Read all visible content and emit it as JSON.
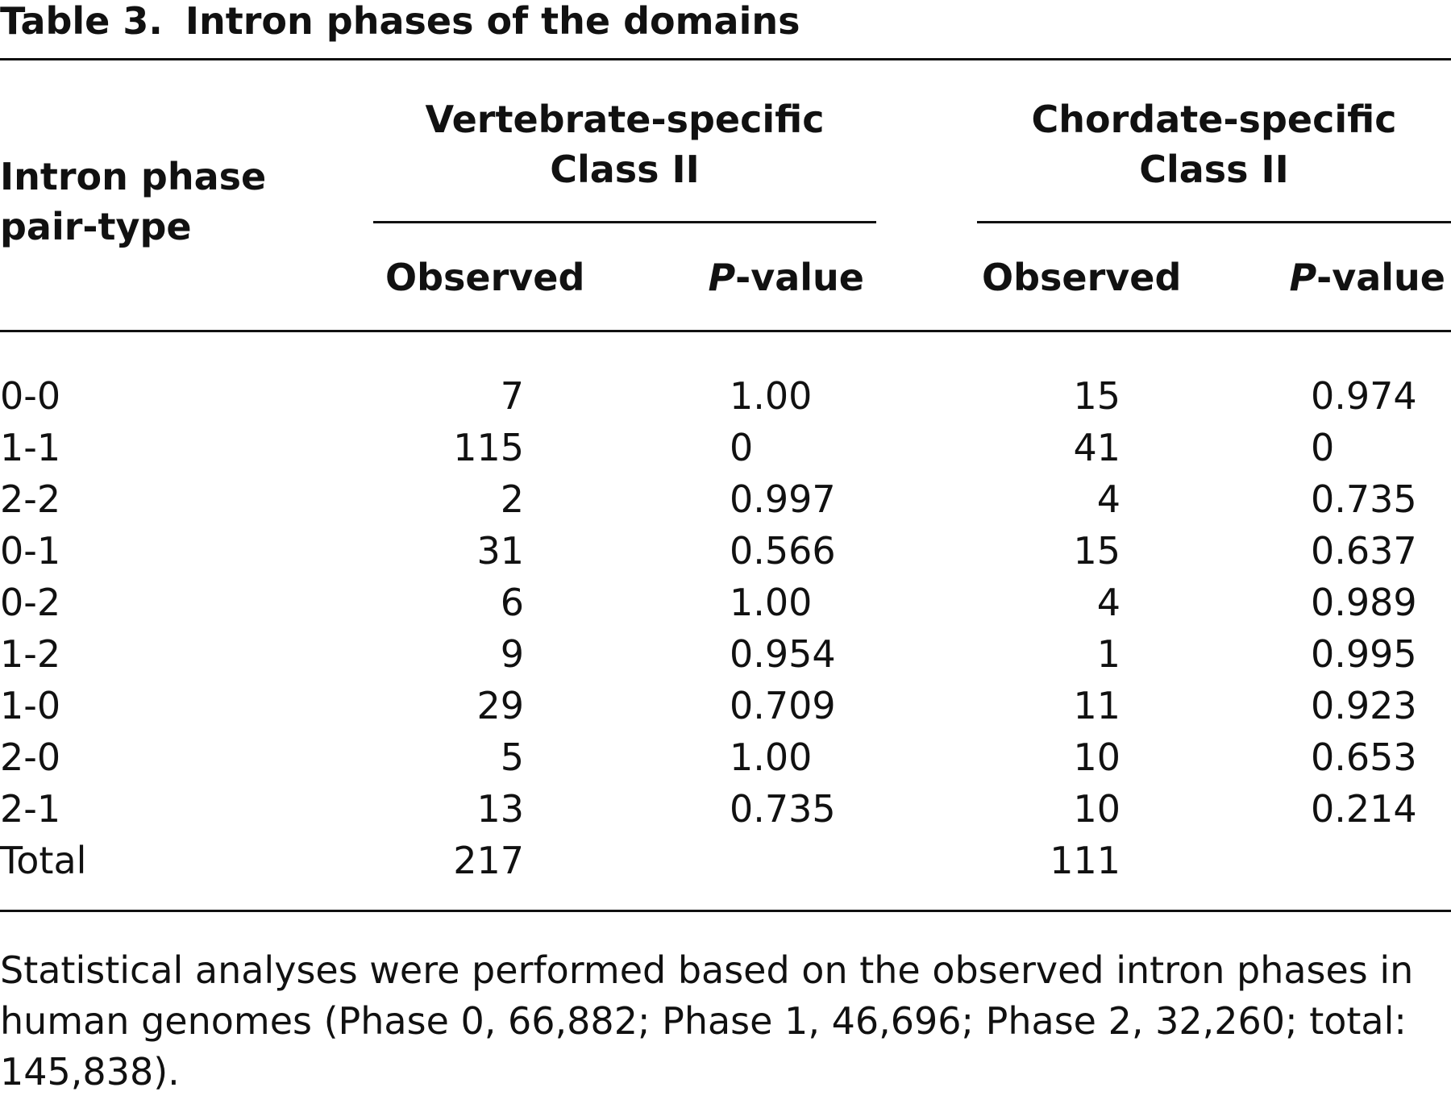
{
  "table": {
    "label": "Table 3.",
    "title": "Intron phases of the domains",
    "stub_header": [
      "Intron phase",
      "pair-type"
    ],
    "group1": {
      "title": [
        "Vertebrate-specific",
        "Class II"
      ],
      "col_observed": "Observed",
      "col_pvalue_italic": "P",
      "col_pvalue_rest": "-value"
    },
    "group2": {
      "title": [
        "Chordate-specific",
        "Class II"
      ],
      "col_observed": "Observed",
      "col_pvalue_italic": "P",
      "col_pvalue_rest": "-value"
    },
    "rows": [
      {
        "type": "0-0",
        "v_obs": "7",
        "v_p": "1.00",
        "c_obs": "15",
        "c_p": "0.974"
      },
      {
        "type": "1-1",
        "v_obs": "115",
        "v_p": "0",
        "c_obs": "41",
        "c_p": "0"
      },
      {
        "type": "2-2",
        "v_obs": "2",
        "v_p": "0.997",
        "c_obs": "4",
        "c_p": "0.735"
      },
      {
        "type": "0-1",
        "v_obs": "31",
        "v_p": "0.566",
        "c_obs": "15",
        "c_p": "0.637"
      },
      {
        "type": "0-2",
        "v_obs": "6",
        "v_p": "1.00",
        "c_obs": "4",
        "c_p": "0.989"
      },
      {
        "type": "1-2",
        "v_obs": "9",
        "v_p": "0.954",
        "c_obs": "1",
        "c_p": "0.995"
      },
      {
        "type": "1-0",
        "v_obs": "29",
        "v_p": "0.709",
        "c_obs": "11",
        "c_p": "0.923"
      },
      {
        "type": "2-0",
        "v_obs": "5",
        "v_p": "1.00",
        "c_obs": "10",
        "c_p": "0.653"
      },
      {
        "type": "2-1",
        "v_obs": "13",
        "v_p": "0.735",
        "c_obs": "10",
        "c_p": "0.214"
      },
      {
        "type": "Total",
        "v_obs": "217",
        "v_p": "",
        "c_obs": "111",
        "c_p": ""
      }
    ],
    "footnote": "Statistical analyses were performed based on the observed intron phases in human genomes (Phase 0, 66,882; Phase 1, 46,696; Phase 2, 32,260; total: 145,838)."
  }
}
